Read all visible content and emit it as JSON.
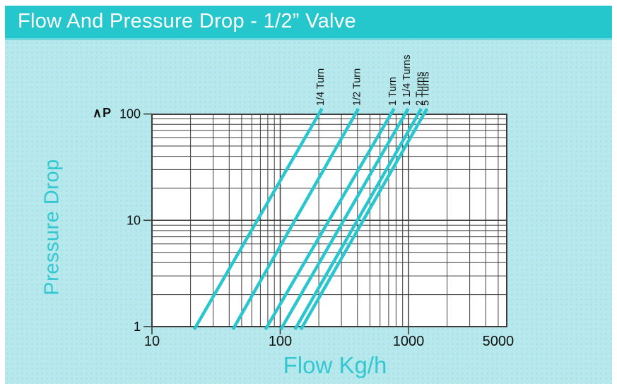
{
  "header": {
    "title": "Flow And Pressure Drop - 1/2” Valve"
  },
  "colors": {
    "header_bg": "#26c6cd",
    "header_edge": "#6fd8dd",
    "title_text": "#ffffff",
    "panel_bg": "#b6e8ec",
    "panel_dot": "#a2dfe6",
    "plot_bg": "#ffffff",
    "grid": "#3d3d3d",
    "axis_text": "#111111",
    "teal_label": "#33c7d1",
    "line": "#29c6cf"
  },
  "chart_data": {
    "type": "line",
    "title": "Flow And Pressure Drop - 1/2” Valve",
    "xlabel": "Flow Kg/h",
    "ylabel": "Pressure Drop",
    "y_symbol": "∧P",
    "x_scale": "log",
    "y_scale": "log",
    "xlim": [
      10,
      5000
    ],
    "ylim": [
      1,
      100
    ],
    "grid": true,
    "legend_position": "rotated labels above top axis",
    "x_ticks": [
      {
        "value": 10,
        "label": "10",
        "has_tick": true
      },
      {
        "value": 100,
        "label": "100",
        "has_tick": true
      },
      {
        "value": 1000,
        "label": "1000",
        "has_tick": true
      },
      {
        "value": 5000,
        "label": "5000",
        "has_tick": false
      }
    ],
    "y_ticks": [
      {
        "value": 100,
        "label": "100"
      },
      {
        "value": 10,
        "label": "10"
      },
      {
        "value": 1,
        "label": "1"
      }
    ],
    "series": [
      {
        "name": "1/4 Turn",
        "points": [
          [
            22,
            1
          ],
          [
            200,
            100
          ]
        ]
      },
      {
        "name": "1/2 Turn",
        "points": [
          [
            44,
            1
          ],
          [
            385,
            100
          ]
        ]
      },
      {
        "name": "1 Turn",
        "points": [
          [
            79,
            1
          ],
          [
            730,
            100
          ]
        ]
      },
      {
        "name": "1 1/4 Turns",
        "points": [
          [
            104,
            1
          ],
          [
            940,
            100
          ]
        ]
      },
      {
        "name": "2 Turns",
        "points": [
          [
            134,
            1
          ],
          [
            1190,
            100
          ]
        ]
      },
      {
        "name": "5 Turns",
        "points": [
          [
            149,
            1
          ],
          [
            1320,
            100
          ]
        ]
      }
    ]
  }
}
